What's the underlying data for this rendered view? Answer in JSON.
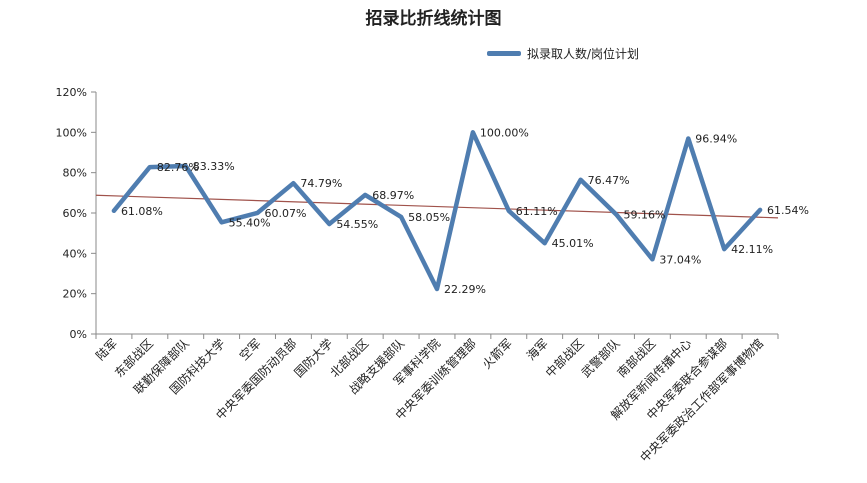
{
  "chart_data": {
    "type": "line",
    "title": "招录比折线统计图",
    "ylim": [
      0,
      120
    ],
    "yticks": [
      "0%",
      "20%",
      "40%",
      "60%",
      "80%",
      "100%",
      "120%"
    ],
    "grid": false,
    "legend_position": "top-right",
    "series_color": "#4f7db0",
    "trend_color": "#a0524b",
    "categories": [
      "陆军",
      "东部战区",
      "联勤保障部队",
      "国防科技大学",
      "空军",
      "中央军委国防动员部",
      "国防大学",
      "北部战区",
      "战略支援部队",
      "军事科学院",
      "中央军委训练管理部",
      "火箭军",
      "海军",
      "中部战区",
      "武警部队",
      "南部战区",
      "解放军新闻传播中心",
      "中央军委联合参谋部",
      "中央军委政治工作部军事博物馆"
    ],
    "series": [
      {
        "name": "拟录取人数/岗位计划",
        "values": [
          61.08,
          82.76,
          83.33,
          55.4,
          60.07,
          74.79,
          54.55,
          68.97,
          58.05,
          22.29,
          100.0,
          61.11,
          45.01,
          76.47,
          59.16,
          37.04,
          96.94,
          42.11,
          61.54
        ],
        "labels": [
          "61.08%",
          "82.76%",
          "83.33%",
          "55.40%",
          "60.07%",
          "74.79%",
          "54.55%",
          "68.97%",
          "58.05%",
          "22.29%",
          "100.00%",
          "61.11%",
          "45.01%",
          "76.47%",
          "59.16%",
          "37.04%",
          "96.94%",
          "42.11%",
          "61.54%"
        ]
      }
    ]
  }
}
